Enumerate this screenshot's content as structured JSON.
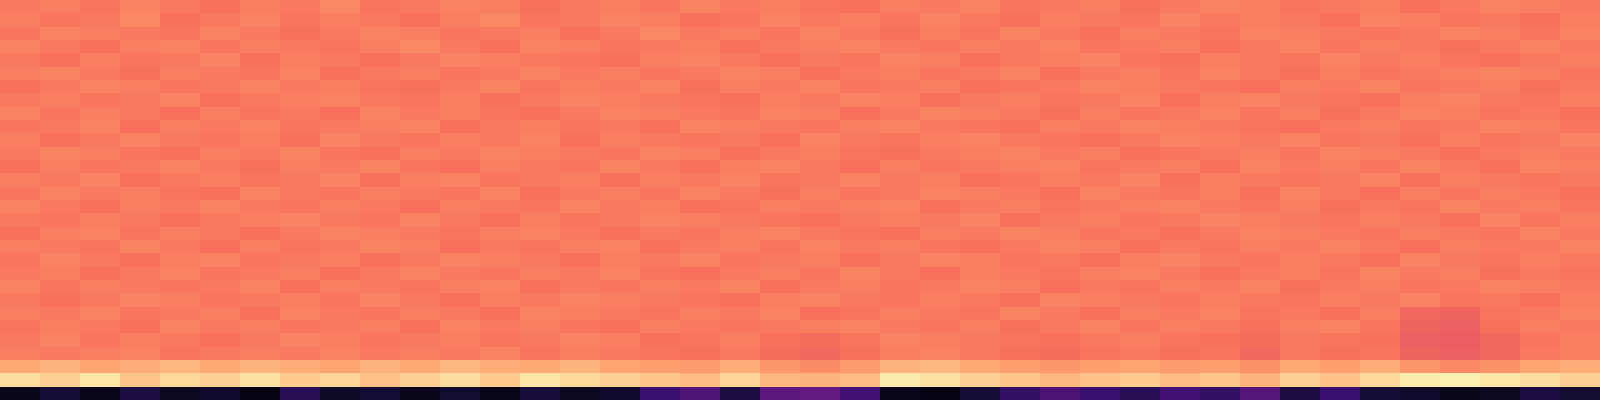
{
  "chart_data": {
    "type": "heatmap",
    "color": "magma",
    "tick_labels": false,
    "zlim": [
      0,
      1
    ],
    "cells": [
      [
        0.72,
        0.73,
        0.71,
        0.74,
        0.72,
        0.7,
        0.73,
        0.72,
        0.75,
        0.71,
        0.72,
        0.74,
        0.73,
        0.7,
        0.72,
        0.73,
        0.71,
        0.74,
        0.72,
        0.73,
        0.71,
        0.7,
        0.73,
        0.72,
        0.74,
        0.71,
        0.72,
        0.73,
        0.7,
        0.72,
        0.74,
        0.73,
        0.71,
        0.72,
        0.73,
        0.7,
        0.72,
        0.74,
        0.73,
        0.72
      ],
      [
        0.73,
        0.71,
        0.72,
        0.75,
        0.7,
        0.72,
        0.74,
        0.71,
        0.73,
        0.72,
        0.7,
        0.73,
        0.75,
        0.71,
        0.72,
        0.74,
        0.73,
        0.7,
        0.71,
        0.74,
        0.72,
        0.73,
        0.71,
        0.74,
        0.72,
        0.7,
        0.73,
        0.72,
        0.71,
        0.74,
        0.72,
        0.73,
        0.72,
        0.7,
        0.74,
        0.73,
        0.71,
        0.72,
        0.7,
        0.73
      ],
      [
        0.71,
        0.74,
        0.73,
        0.72,
        0.71,
        0.74,
        0.72,
        0.7,
        0.72,
        0.74,
        0.73,
        0.71,
        0.72,
        0.73,
        0.7,
        0.72,
        0.75,
        0.72,
        0.73,
        0.71,
        0.74,
        0.72,
        0.7,
        0.73,
        0.71,
        0.74,
        0.72,
        0.7,
        0.73,
        0.72,
        0.71,
        0.74,
        0.73,
        0.72,
        0.71,
        0.72,
        0.74,
        0.73,
        0.71,
        0.74
      ],
      [
        0.74,
        0.72,
        0.7,
        0.73,
        0.74,
        0.71,
        0.73,
        0.72,
        0.71,
        0.73,
        0.75,
        0.72,
        0.7,
        0.74,
        0.73,
        0.71,
        0.72,
        0.73,
        0.7,
        0.72,
        0.73,
        0.74,
        0.72,
        0.71,
        0.73,
        0.72,
        0.74,
        0.71,
        0.72,
        0.73,
        0.7,
        0.72,
        0.74,
        0.71,
        0.73,
        0.72,
        0.7,
        0.72,
        0.74,
        0.72
      ],
      [
        0.72,
        0.7,
        0.73,
        0.71,
        0.72,
        0.74,
        0.7,
        0.73,
        0.72,
        0.7,
        0.72,
        0.74,
        0.73,
        0.72,
        0.71,
        0.7,
        0.73,
        0.74,
        0.72,
        0.7,
        0.72,
        0.71,
        0.74,
        0.73,
        0.7,
        0.72,
        0.73,
        0.74,
        0.71,
        0.7,
        0.73,
        0.72,
        0.71,
        0.74,
        0.72,
        0.73,
        0.71,
        0.7,
        0.72,
        0.73
      ],
      [
        0.73,
        0.74,
        0.72,
        0.7,
        0.73,
        0.72,
        0.71,
        0.74,
        0.7,
        0.72,
        0.73,
        0.71,
        0.72,
        0.74,
        0.72,
        0.73,
        0.71,
        0.72,
        0.74,
        0.73,
        0.7,
        0.72,
        0.73,
        0.71,
        0.72,
        0.74,
        0.7,
        0.72,
        0.73,
        0.71,
        0.74,
        0.72,
        0.7,
        0.73,
        0.71,
        0.72,
        0.73,
        0.74,
        0.73,
        0.71
      ],
      [
        0.7,
        0.72,
        0.74,
        0.73,
        0.71,
        0.72,
        0.74,
        0.72,
        0.73,
        0.71,
        0.7,
        0.72,
        0.74,
        0.71,
        0.73,
        0.72,
        0.74,
        0.7,
        0.73,
        0.72,
        0.74,
        0.71,
        0.72,
        0.73,
        0.7,
        0.71,
        0.72,
        0.74,
        0.73,
        0.72,
        0.71,
        0.7,
        0.73,
        0.72,
        0.74,
        0.71,
        0.72,
        0.73,
        0.7,
        0.72
      ],
      [
        0.72,
        0.73,
        0.71,
        0.72,
        0.74,
        0.7,
        0.72,
        0.73,
        0.74,
        0.72,
        0.71,
        0.73,
        0.7,
        0.72,
        0.74,
        0.73,
        0.72,
        0.71,
        0.7,
        0.73,
        0.72,
        0.74,
        0.73,
        0.7,
        0.72,
        0.73,
        0.71,
        0.72,
        0.74,
        0.7,
        0.73,
        0.74,
        0.72,
        0.71,
        0.7,
        0.73,
        0.74,
        0.72,
        0.71,
        0.73
      ],
      [
        0.74,
        0.71,
        0.73,
        0.72,
        0.7,
        0.73,
        0.71,
        0.72,
        0.7,
        0.74,
        0.72,
        0.73,
        0.71,
        0.7,
        0.72,
        0.74,
        0.73,
        0.72,
        0.71,
        0.74,
        0.73,
        0.7,
        0.72,
        0.74,
        0.73,
        0.72,
        0.7,
        0.73,
        0.71,
        0.72,
        0.74,
        0.71,
        0.73,
        0.7,
        0.72,
        0.74,
        0.73,
        0.71,
        0.72,
        0.7
      ],
      [
        0.71,
        0.72,
        0.74,
        0.7,
        0.73,
        0.72,
        0.74,
        0.71,
        0.72,
        0.73,
        0.74,
        0.7,
        0.72,
        0.73,
        0.71,
        0.72,
        0.7,
        0.74,
        0.73,
        0.72,
        0.71,
        0.73,
        0.74,
        0.72,
        0.71,
        0.7,
        0.73,
        0.72,
        0.74,
        0.73,
        0.72,
        0.71,
        0.7,
        0.72,
        0.73,
        0.71,
        0.72,
        0.74,
        0.73,
        0.71
      ],
      [
        0.73,
        0.7,
        0.72,
        0.74,
        0.72,
        0.71,
        0.73,
        0.7,
        0.74,
        0.72,
        0.71,
        0.73,
        0.72,
        0.74,
        0.7,
        0.73,
        0.72,
        0.71,
        0.72,
        0.7,
        0.74,
        0.72,
        0.71,
        0.73,
        0.74,
        0.72,
        0.71,
        0.7,
        0.72,
        0.74,
        0.73,
        0.72,
        0.74,
        0.71,
        0.72,
        0.7,
        0.73,
        0.71,
        0.72,
        0.74
      ],
      [
        0.72,
        0.74,
        0.73,
        0.71,
        0.7,
        0.73,
        0.72,
        0.74,
        0.71,
        0.7,
        0.73,
        0.72,
        0.74,
        0.73,
        0.72,
        0.71,
        0.74,
        0.73,
        0.7,
        0.72,
        0.73,
        0.71,
        0.7,
        0.72,
        0.73,
        0.74,
        0.72,
        0.73,
        0.7,
        0.71,
        0.72,
        0.73,
        0.71,
        0.74,
        0.73,
        0.72,
        0.7,
        0.72,
        0.73,
        0.72
      ],
      [
        0.7,
        0.73,
        0.71,
        0.72,
        0.74,
        0.72,
        0.7,
        0.73,
        0.72,
        0.74,
        0.71,
        0.7,
        0.73,
        0.72,
        0.71,
        0.74,
        0.72,
        0.7,
        0.73,
        0.74,
        0.72,
        0.7,
        0.73,
        0.71,
        0.72,
        0.73,
        0.74,
        0.71,
        0.72,
        0.73,
        0.7,
        0.74,
        0.72,
        0.73,
        0.71,
        0.74,
        0.72,
        0.7,
        0.74,
        0.73
      ],
      [
        0.73,
        0.72,
        0.74,
        0.7,
        0.72,
        0.73,
        0.71,
        0.72,
        0.74,
        0.7,
        0.73,
        0.74,
        0.71,
        0.72,
        0.73,
        0.7,
        0.73,
        0.72,
        0.74,
        0.71,
        0.72,
        0.74,
        0.72,
        0.73,
        0.7,
        0.71,
        0.73,
        0.72,
        0.74,
        0.7,
        0.73,
        0.72,
        0.71,
        0.72,
        0.74,
        0.7,
        0.73,
        0.72,
        0.71,
        0.72
      ],
      [
        0.71,
        0.74,
        0.72,
        0.73,
        0.71,
        0.7,
        0.74,
        0.72,
        0.71,
        0.73,
        0.72,
        0.71,
        0.74,
        0.7,
        0.72,
        0.73,
        0.71,
        0.74,
        0.72,
        0.7,
        0.73,
        0.71,
        0.72,
        0.74,
        0.73,
        0.72,
        0.7,
        0.74,
        0.72,
        0.71,
        0.73,
        0.7,
        0.74,
        0.72,
        0.7,
        0.73,
        0.71,
        0.73,
        0.72,
        0.7
      ],
      [
        0.74,
        0.72,
        0.7,
        0.73,
        0.72,
        0.74,
        0.72,
        0.71,
        0.73,
        0.72,
        0.7,
        0.73,
        0.72,
        0.71,
        0.74,
        0.72,
        0.73,
        0.7,
        0.71,
        0.73,
        0.72,
        0.73,
        0.74,
        0.7,
        0.72,
        0.73,
        0.71,
        0.72,
        0.73,
        0.74,
        0.72,
        0.71,
        0.73,
        0.7,
        0.72,
        0.71,
        0.74,
        0.72,
        0.73,
        0.71
      ],
      [
        0.72,
        0.71,
        0.73,
        0.72,
        0.7,
        0.72,
        0.73,
        0.74,
        0.72,
        0.71,
        0.74,
        0.72,
        0.7,
        0.73,
        0.71,
        0.72,
        0.74,
        0.73,
        0.72,
        0.71,
        0.7,
        0.72,
        0.73,
        0.72,
        0.74,
        0.7,
        0.72,
        0.73,
        0.71,
        0.72,
        0.74,
        0.73,
        0.72,
        0.71,
        0.73,
        0.72,
        0.7,
        0.74,
        0.71,
        0.73
      ],
      [
        0.7,
        0.73,
        0.74,
        0.71,
        0.73,
        0.72,
        0.7,
        0.72,
        0.74,
        0.73,
        0.72,
        0.71,
        0.73,
        0.74,
        0.72,
        0.7,
        0.72,
        0.71,
        0.73,
        0.74,
        0.72,
        0.71,
        0.7,
        0.73,
        0.72,
        0.74,
        0.73,
        0.71,
        0.72,
        0.7,
        0.72,
        0.74,
        0.73,
        0.72,
        0.71,
        0.73,
        0.72,
        0.71,
        0.74,
        0.72
      ],
      [
        0.73,
        0.72,
        0.71,
        0.74,
        0.72,
        0.7,
        0.73,
        0.71,
        0.72,
        0.74,
        0.73,
        0.7,
        0.72,
        0.71,
        0.73,
        0.74,
        0.7,
        0.72,
        0.73,
        0.71,
        0.74,
        0.72,
        0.73,
        0.71,
        0.7,
        0.72,
        0.74,
        0.73,
        0.7,
        0.72,
        0.71,
        0.73,
        0.72,
        0.74,
        0.72,
        0.7,
        0.73,
        0.72,
        0.72,
        0.74
      ],
      [
        0.71,
        0.74,
        0.72,
        0.7,
        0.73,
        0.74,
        0.71,
        0.72,
        0.73,
        0.7,
        0.72,
        0.74,
        0.73,
        0.72,
        0.7,
        0.73,
        0.72,
        0.74,
        0.71,
        0.72,
        0.73,
        0.7,
        0.72,
        0.74,
        0.73,
        0.71,
        0.72,
        0.7,
        0.73,
        0.74,
        0.72,
        0.71,
        0.73,
        0.72,
        0.7,
        0.74,
        0.72,
        0.71,
        0.73,
        0.72
      ],
      [
        0.72,
        0.73,
        0.7,
        0.72,
        0.74,
        0.71,
        0.72,
        0.73,
        0.7,
        0.72,
        0.74,
        0.72,
        0.71,
        0.73,
        0.72,
        0.74,
        0.71,
        0.7,
        0.72,
        0.73,
        0.71,
        0.74,
        0.72,
        0.7,
        0.73,
        0.72,
        0.71,
        0.73,
        0.74,
        0.72,
        0.7,
        0.72,
        0.73,
        0.71,
        0.74,
        0.72,
        0.73,
        0.7,
        0.72,
        0.71
      ],
      [
        0.74,
        0.71,
        0.73,
        0.72,
        0.71,
        0.72,
        0.74,
        0.7,
        0.73,
        0.72,
        0.71,
        0.73,
        0.74,
        0.7,
        0.72,
        0.71,
        0.73,
        0.72,
        0.74,
        0.7,
        0.72,
        0.73,
        0.71,
        0.72,
        0.74,
        0.73,
        0.7,
        0.72,
        0.71,
        0.73,
        0.72,
        0.74,
        0.7,
        0.72,
        0.73,
        0.71,
        0.72,
        0.74,
        0.73,
        0.72
      ],
      [
        0.72,
        0.7,
        0.72,
        0.74,
        0.73,
        0.71,
        0.72,
        0.73,
        0.71,
        0.74,
        0.72,
        0.7,
        0.73,
        0.72,
        0.74,
        0.73,
        0.72,
        0.71,
        0.7,
        0.73,
        0.74,
        0.72,
        0.71,
        0.73,
        0.72,
        0.7,
        0.74,
        0.73,
        0.72,
        0.71,
        0.73,
        0.72,
        0.71,
        0.73,
        0.72,
        0.74,
        0.71,
        0.72,
        0.7,
        0.73
      ],
      [
        0.73,
        0.72,
        0.74,
        0.71,
        0.72,
        0.73,
        0.7,
        0.74,
        0.72,
        0.71,
        0.73,
        0.72,
        0.7,
        0.74,
        0.73,
        0.72,
        0.71,
        0.73,
        0.72,
        0.74,
        0.7,
        0.71,
        0.73,
        0.72,
        0.71,
        0.74,
        0.72,
        0.7,
        0.73,
        0.72,
        0.74,
        0.71,
        0.72,
        0.7,
        0.73,
        0.68,
        0.67,
        0.71,
        0.72,
        0.74
      ],
      [
        0.71,
        0.73,
        0.72,
        0.7,
        0.74,
        0.72,
        0.73,
        0.71,
        0.72,
        0.73,
        0.7,
        0.74,
        0.72,
        0.73,
        0.71,
        0.7,
        0.73,
        0.72,
        0.71,
        0.72,
        0.73,
        0.74,
        0.72,
        0.71,
        0.73,
        0.7,
        0.72,
        0.74,
        0.71,
        0.73,
        0.72,
        0.7,
        0.73,
        0.74,
        0.71,
        0.67,
        0.66,
        0.7,
        0.73,
        0.72
      ],
      [
        0.72,
        0.74,
        0.71,
        0.73,
        0.72,
        0.7,
        0.72,
        0.74,
        0.73,
        0.71,
        0.72,
        0.73,
        0.71,
        0.72,
        0.74,
        0.73,
        0.7,
        0.71,
        0.73,
        0.7,
        0.69,
        0.71,
        0.74,
        0.73,
        0.72,
        0.71,
        0.7,
        0.72,
        0.73,
        0.71,
        0.7,
        0.69,
        0.72,
        0.71,
        0.7,
        0.66,
        0.65,
        0.68,
        0.71,
        0.73
      ],
      [
        0.73,
        0.72,
        0.73,
        0.74,
        0.71,
        0.72,
        0.73,
        0.72,
        0.74,
        0.72,
        0.73,
        0.72,
        0.74,
        0.71,
        0.73,
        0.72,
        0.71,
        0.7,
        0.72,
        0.69,
        0.68,
        0.7,
        0.73,
        0.74,
        0.72,
        0.7,
        0.69,
        0.71,
        0.72,
        0.7,
        0.71,
        0.68,
        0.72,
        0.7,
        0.71,
        0.67,
        0.66,
        0.68,
        0.72,
        0.73
      ],
      [
        0.82,
        0.84,
        0.81,
        0.83,
        0.85,
        0.82,
        0.84,
        0.83,
        0.81,
        0.84,
        0.82,
        0.85,
        0.83,
        0.82,
        0.84,
        0.81,
        0.8,
        0.79,
        0.83,
        0.78,
        0.76,
        0.79,
        0.84,
        0.85,
        0.82,
        0.8,
        0.78,
        0.8,
        0.81,
        0.79,
        0.8,
        0.77,
        0.82,
        0.8,
        0.83,
        0.78,
        0.75,
        0.77,
        0.81,
        0.83
      ],
      [
        0.93,
        0.9,
        0.95,
        0.88,
        0.92,
        0.9,
        0.94,
        0.89,
        0.91,
        0.87,
        0.9,
        0.93,
        0.89,
        0.95,
        0.92,
        0.9,
        0.88,
        0.86,
        0.91,
        0.85,
        0.84,
        0.86,
        0.96,
        0.94,
        0.9,
        0.88,
        0.85,
        0.87,
        0.89,
        0.86,
        0.88,
        0.84,
        0.9,
        0.87,
        0.92,
        0.96,
        0.97,
        0.95,
        0.93,
        0.9
      ],
      [
        0.05,
        0.1,
        0.04,
        0.12,
        0.06,
        0.08,
        0.03,
        0.15,
        0.07,
        0.1,
        0.05,
        0.09,
        0.04,
        0.11,
        0.06,
        0.08,
        0.2,
        0.25,
        0.12,
        0.28,
        0.3,
        0.22,
        0.05,
        0.03,
        0.1,
        0.18,
        0.24,
        0.2,
        0.15,
        0.22,
        0.18,
        0.26,
        0.12,
        0.2,
        0.1,
        0.08,
        0.04,
        0.06,
        0.12,
        0.09
      ]
    ]
  }
}
